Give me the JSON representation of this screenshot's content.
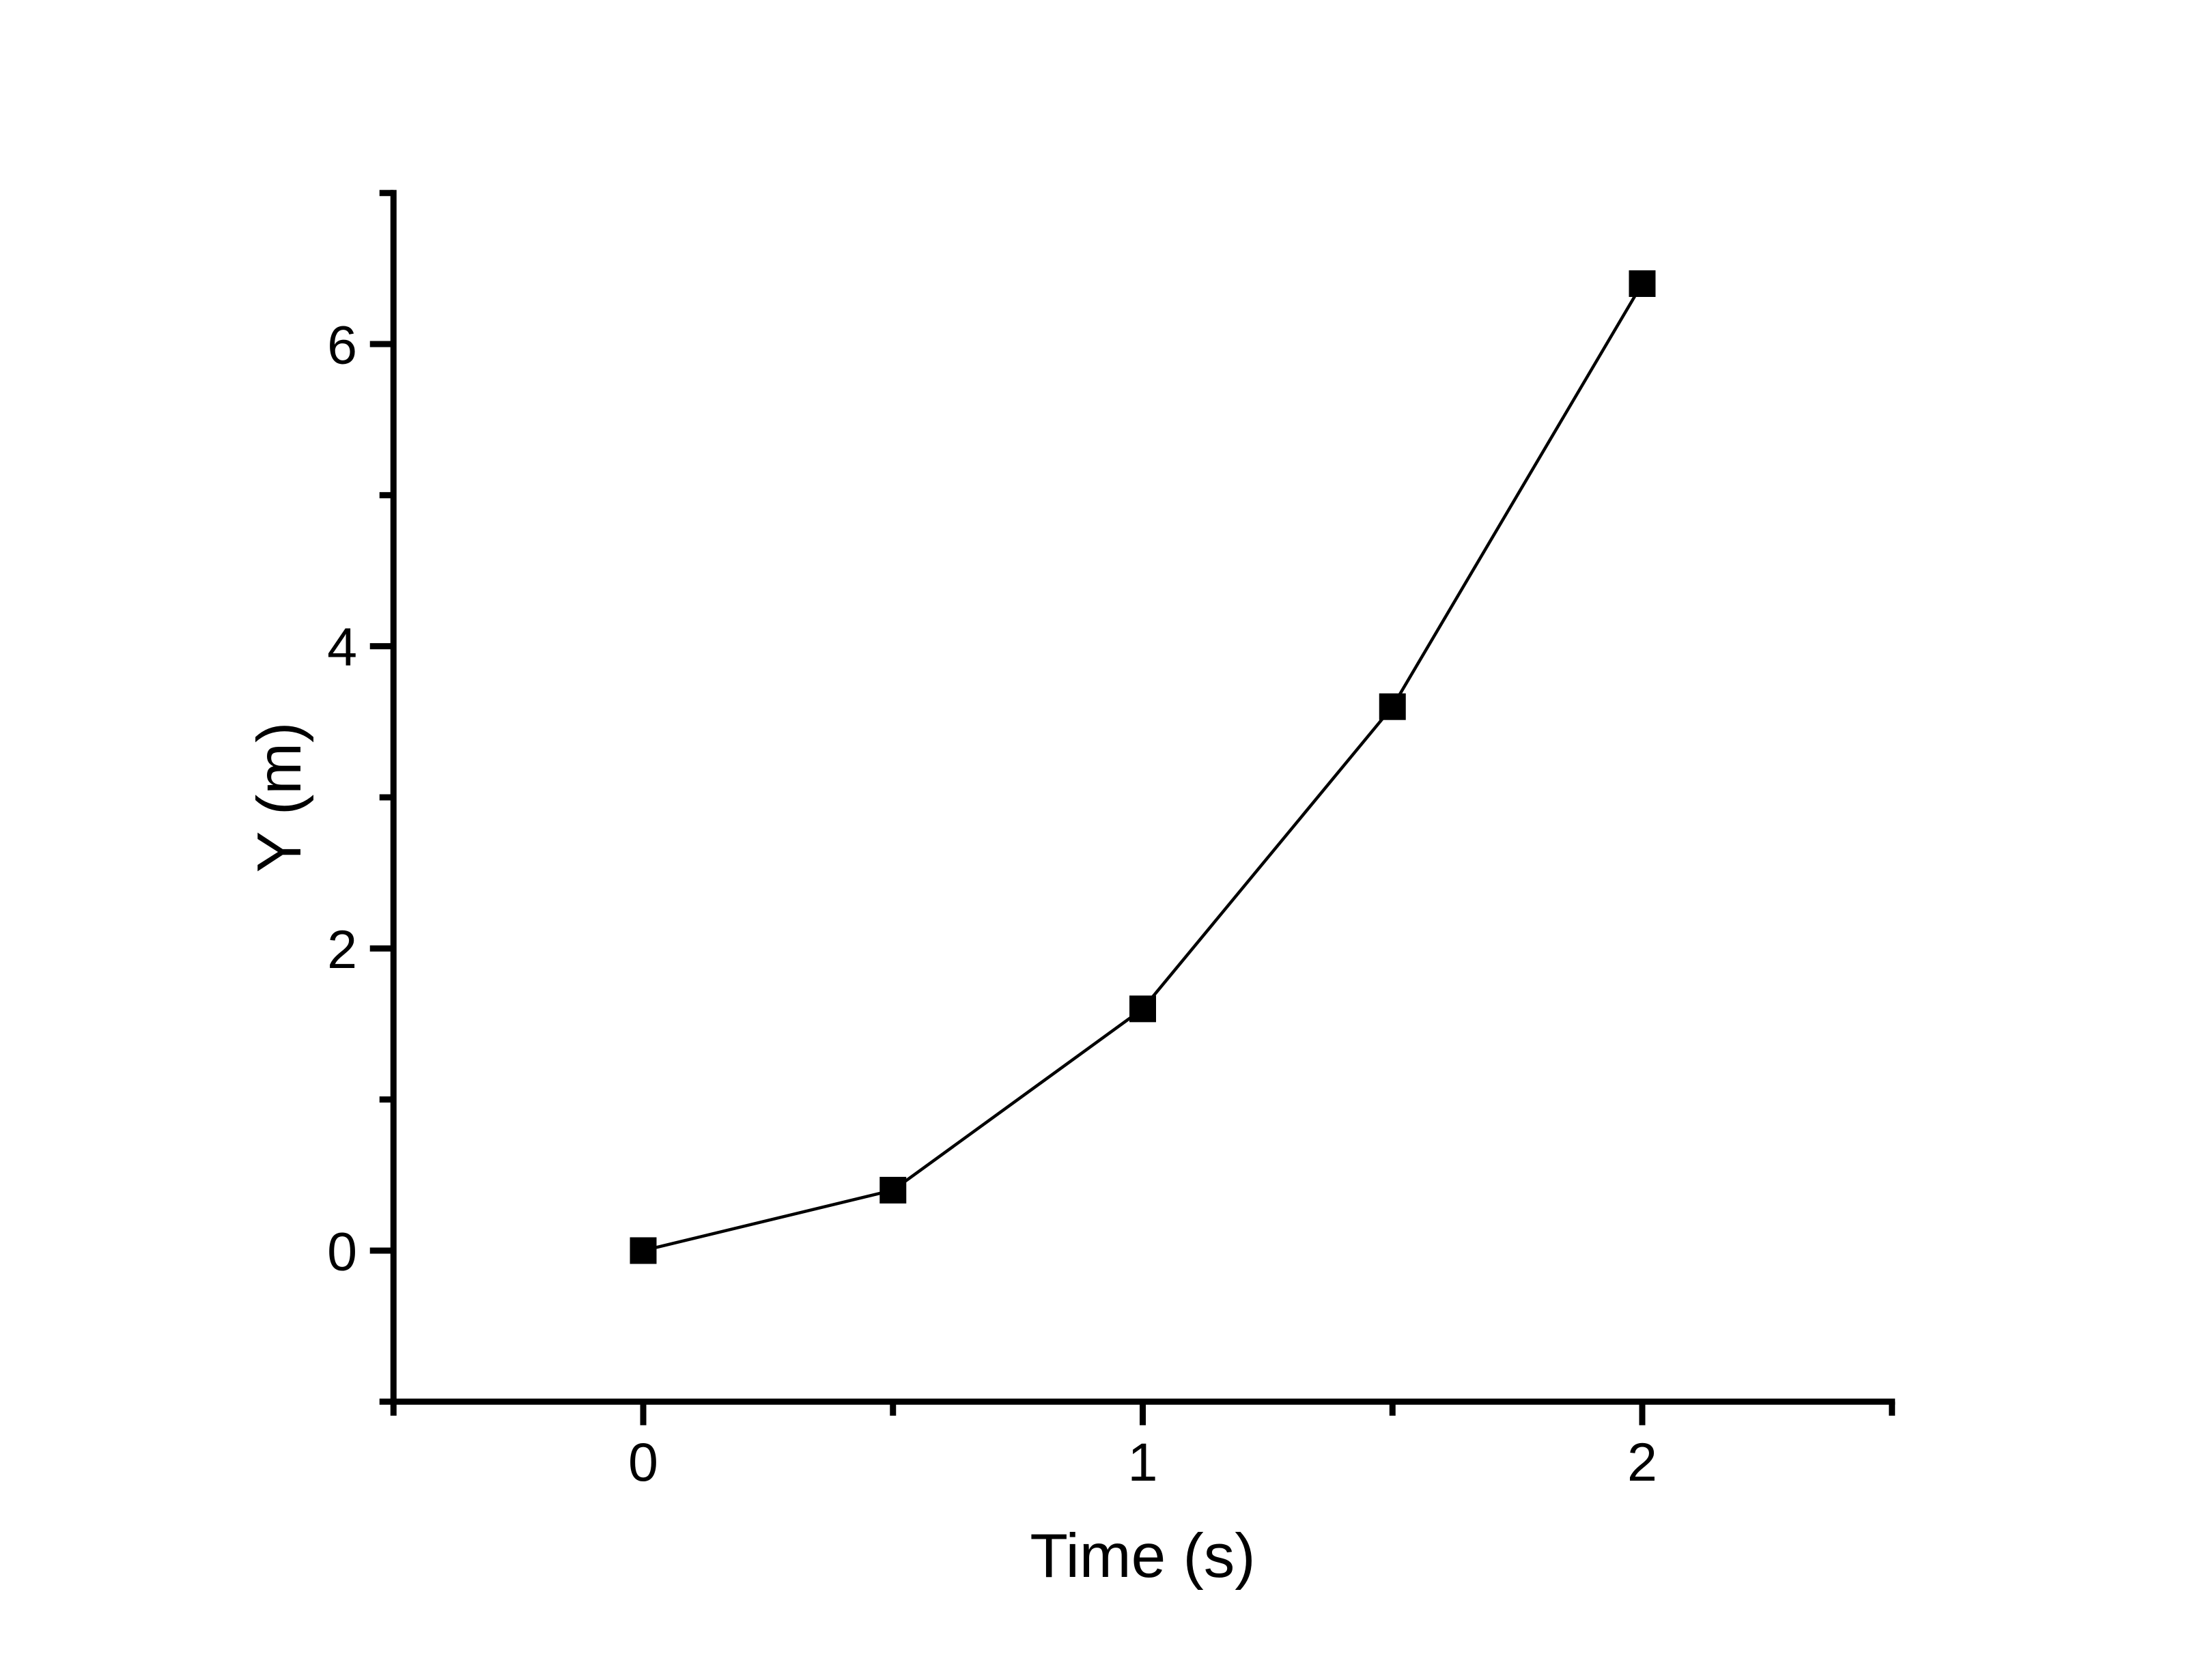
{
  "chart_data": {
    "type": "line",
    "title": "",
    "xlabel": "Time (s)",
    "ylabel": "Y (m)",
    "series": [
      {
        "name": "Y",
        "x": [
          0,
          0.5,
          1,
          1.5,
          2
        ],
        "y": [
          0,
          0.4,
          1.6,
          3.6,
          6.4
        ]
      }
    ],
    "xlim": [
      -0.5,
      2.5
    ],
    "ylim": [
      -1,
      7
    ],
    "x_major_ticks": [
      0,
      1,
      2
    ],
    "x_minor_ticks": [
      -0.5,
      0.5,
      1.5,
      2.5
    ],
    "y_major_ticks": [
      0,
      2,
      4,
      6
    ],
    "y_minor_ticks": [
      -1,
      1,
      3,
      5,
      7
    ],
    "grid": false,
    "legend": false,
    "marker": "filled-square",
    "line_color": "#000000",
    "marker_color": "#000000",
    "axis_color": "#000000",
    "background_color": "#ffffff",
    "tick_direction": "out"
  }
}
